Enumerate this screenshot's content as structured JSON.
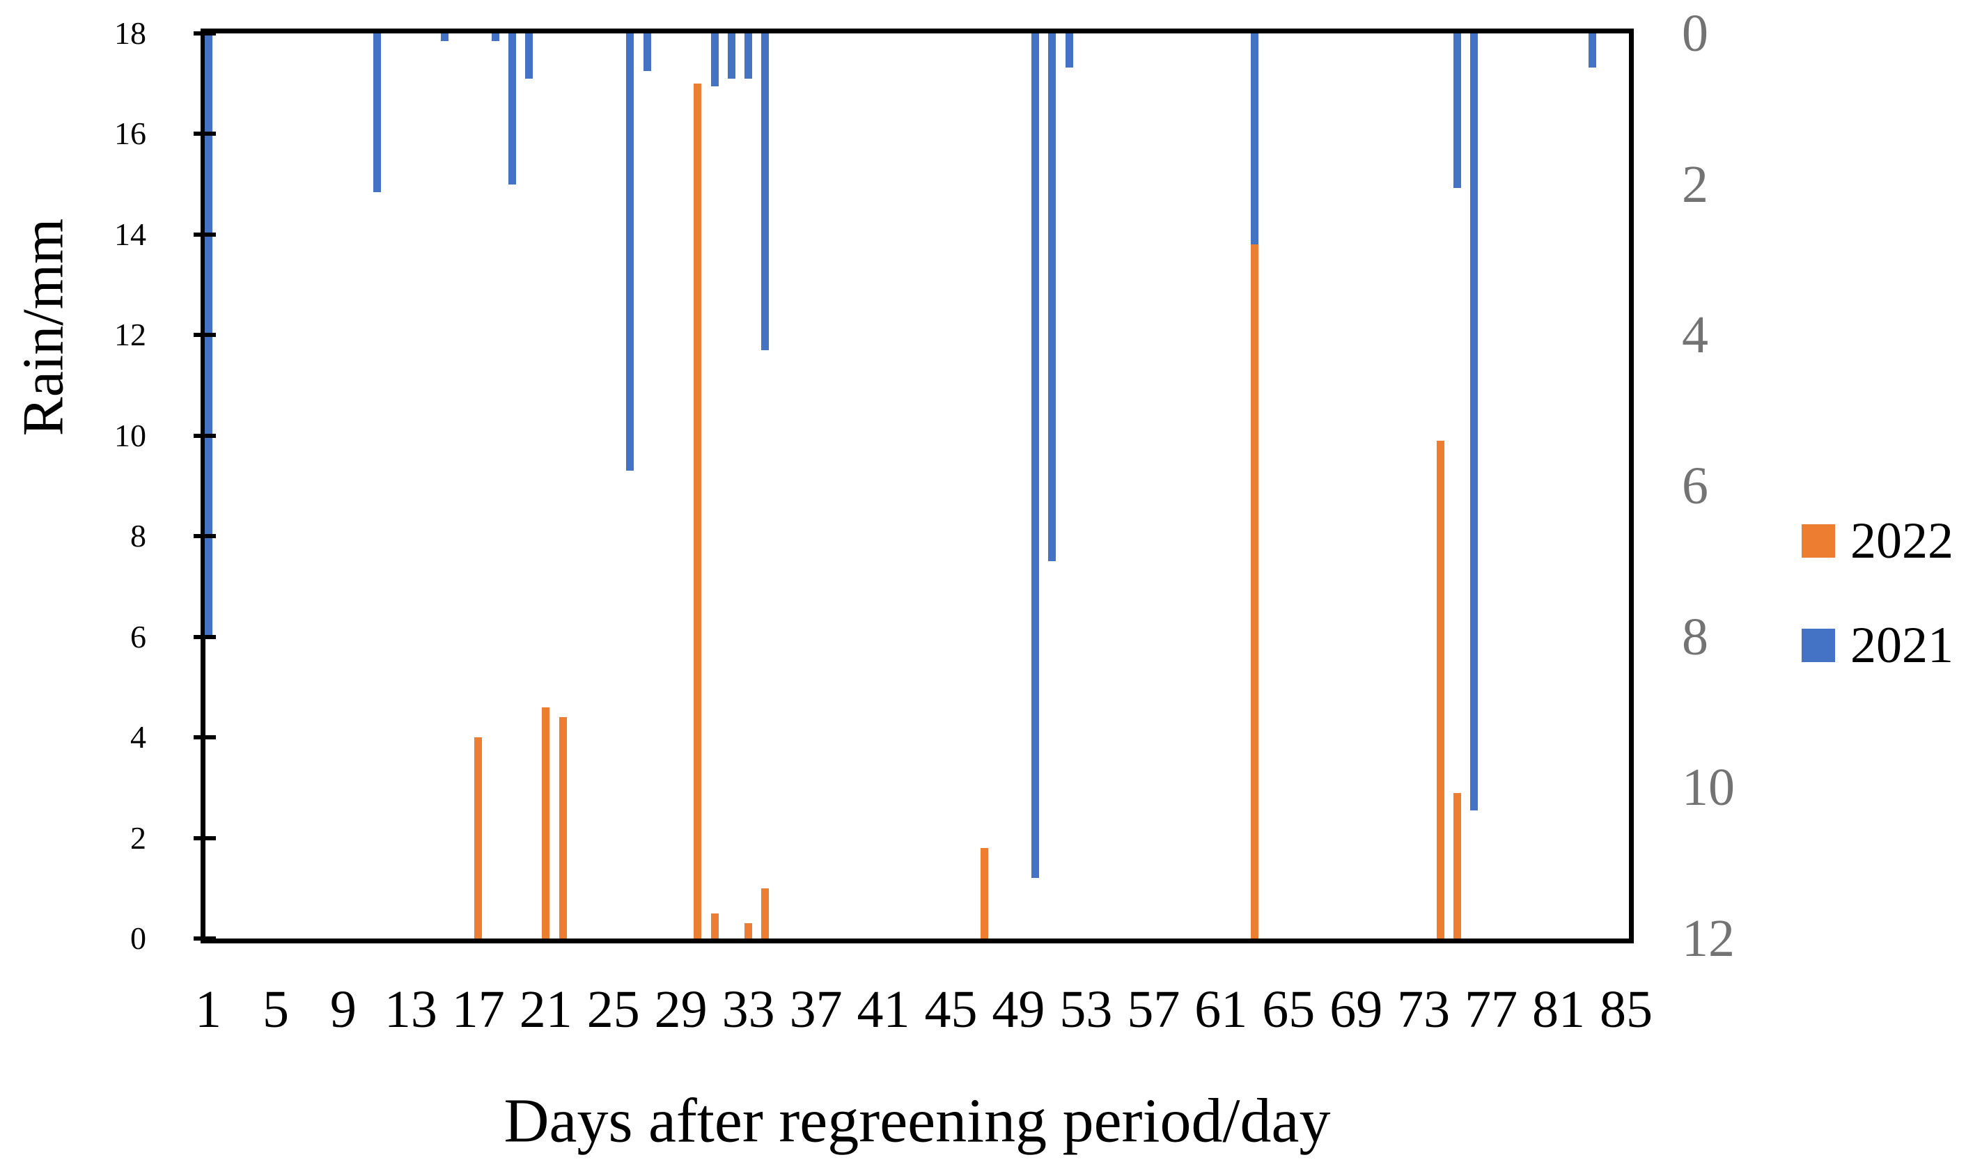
{
  "chart_data": {
    "type": "bar",
    "title": "",
    "xlabel": "Days after regreening period/day",
    "ylabel_left": "Rain/mm",
    "x_tick_labels": [
      1,
      5,
      9,
      13,
      17,
      21,
      25,
      29,
      33,
      37,
      41,
      45,
      49,
      53,
      57,
      61,
      65,
      69,
      73,
      77,
      81,
      85
    ],
    "x_day_min": 1,
    "x_day_max": 85,
    "left_axis": {
      "min": 0,
      "max": 18,
      "step": 2,
      "tick_labels": [
        0,
        2,
        4,
        6,
        8,
        10,
        12,
        14,
        16,
        18
      ],
      "color": "#000000"
    },
    "right_axis": {
      "min": 0,
      "max": 12,
      "step": 2,
      "tick_labels": [
        0,
        2,
        4,
        6,
        8,
        10,
        12
      ],
      "inverted": true,
      "color": "#737373"
    },
    "grid": false,
    "legend_position": "right",
    "legend": [
      {
        "label": "2022",
        "color": "#ED7D31"
      },
      {
        "label": "2021",
        "color": "#4472C4"
      }
    ],
    "series": [
      {
        "name": "2022",
        "color": "#ED7D31",
        "axis": "left",
        "direction": "up",
        "points": [
          {
            "day": 17,
            "value": 4.0
          },
          {
            "day": 21,
            "value": 4.6
          },
          {
            "day": 22,
            "value": 4.4
          },
          {
            "day": 30,
            "value": 17.0
          },
          {
            "day": 31,
            "value": 0.5
          },
          {
            "day": 33,
            "value": 0.3
          },
          {
            "day": 34,
            "value": 1.0
          },
          {
            "day": 47,
            "value": 1.8
          },
          {
            "day": 63,
            "value": 13.8
          },
          {
            "day": 74,
            "value": 9.9
          },
          {
            "day": 75,
            "value": 2.9
          }
        ]
      },
      {
        "name": "2021",
        "color": "#4472C4",
        "axis": "right",
        "direction": "down",
        "points": [
          {
            "day": 1,
            "value": 8.0
          },
          {
            "day": 11,
            "value": 2.1
          },
          {
            "day": 15,
            "value": 0.1
          },
          {
            "day": 18,
            "value": 0.1
          },
          {
            "day": 19,
            "value": 2.0
          },
          {
            "day": 20,
            "value": 0.6
          },
          {
            "day": 26,
            "value": 5.8
          },
          {
            "day": 27,
            "value": 0.5
          },
          {
            "day": 31,
            "value": 0.7
          },
          {
            "day": 32,
            "value": 0.6
          },
          {
            "day": 33,
            "value": 0.6
          },
          {
            "day": 34,
            "value": 4.2
          },
          {
            "day": 50,
            "value": 11.2
          },
          {
            "day": 51,
            "value": 7.0
          },
          {
            "day": 52,
            "value": 0.45
          },
          {
            "day": 63,
            "value": 2.8
          },
          {
            "day": 75,
            "value": 2.05
          },
          {
            "day": 76,
            "value": 10.3
          },
          {
            "day": 83,
            "value": 0.45
          }
        ]
      }
    ]
  }
}
